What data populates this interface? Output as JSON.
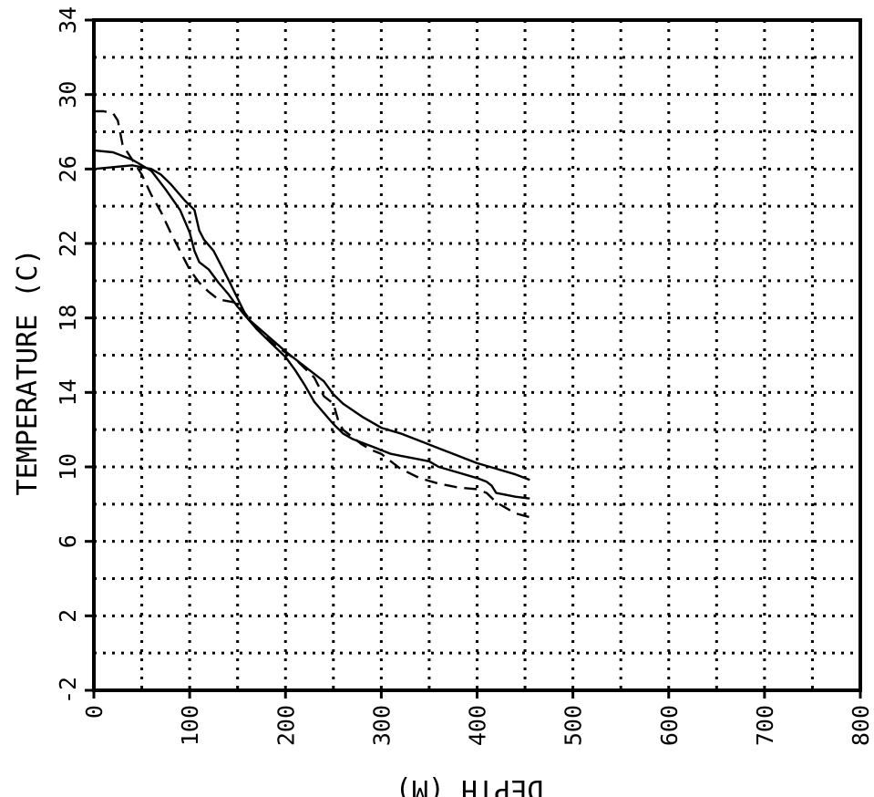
{
  "chart_data": {
    "type": "line",
    "xlabel": "DEPTH (M)",
    "ylabel": "TEMPERATURE (C)",
    "xlim": [
      0,
      800
    ],
    "ylim": [
      -2,
      34
    ],
    "x_ticks": [
      "0",
      "100",
      "200",
      "300",
      "400",
      "500",
      "600",
      "700",
      "800"
    ],
    "y_ticks": [
      "-2",
      "2",
      "6",
      "10",
      "14",
      "18",
      "22",
      "26",
      "30",
      "34"
    ],
    "x_grid_step": 50,
    "y_grid_step": 2,
    "grid": true,
    "grid_style": "dotted",
    "series": [
      {
        "style": "solid",
        "x": [
          0,
          20,
          40,
          60,
          75,
          90,
          100,
          105,
          110,
          120,
          130,
          140,
          150,
          160,
          170,
          180,
          190,
          200,
          210,
          220,
          230,
          240,
          250,
          260,
          270,
          280,
          290,
          300,
          310,
          320,
          330,
          340,
          350,
          360,
          380,
          400,
          410,
          415,
          420,
          440,
          455
        ],
        "y": [
          27.0,
          26.9,
          26.5,
          25.9,
          24.9,
          23.8,
          22.6,
          21.6,
          21.0,
          20.6,
          19.9,
          19.3,
          18.6,
          18.0,
          17.4,
          16.9,
          16.4,
          15.9,
          15.2,
          14.4,
          13.5,
          12.9,
          12.3,
          11.8,
          11.5,
          11.3,
          11.1,
          10.9,
          10.7,
          10.6,
          10.5,
          10.4,
          10.3,
          10.0,
          9.7,
          9.4,
          9.2,
          9.0,
          8.6,
          8.4,
          8.3
        ]
      },
      {
        "style": "solid",
        "x": [
          0,
          20,
          40,
          60,
          70,
          80,
          95,
          105,
          110,
          115,
          125,
          140,
          160,
          180,
          200,
          220,
          240,
          250,
          260,
          280,
          300,
          320,
          340,
          360,
          380,
          400,
          420,
          440,
          455
        ],
        "y": [
          26.0,
          26.1,
          26.2,
          26.0,
          25.7,
          25.2,
          24.3,
          23.8,
          22.7,
          22.2,
          21.6,
          20.1,
          18.0,
          17.1,
          16.2,
          15.4,
          14.6,
          13.9,
          13.4,
          12.7,
          12.1,
          11.8,
          11.4,
          11.0,
          10.6,
          10.2,
          9.9,
          9.6,
          9.3
        ]
      },
      {
        "style": "dashed",
        "x": [
          0,
          10,
          20,
          25,
          30,
          35,
          40,
          50,
          60,
          70,
          80,
          90,
          100,
          110,
          120,
          130,
          140,
          150,
          170,
          190,
          210,
          230,
          240,
          250,
          255,
          260,
          270,
          280,
          290,
          300,
          310,
          320,
          340,
          360,
          380,
          400,
          410,
          420,
          430,
          440,
          455
        ],
        "y": [
          29.1,
          29.1,
          29.0,
          28.6,
          27.3,
          26.9,
          26.5,
          25.7,
          24.6,
          23.7,
          22.6,
          21.6,
          20.6,
          19.9,
          19.4,
          19.0,
          18.9,
          18.8,
          17.4,
          16.5,
          15.8,
          14.8,
          13.8,
          13.4,
          12.5,
          12.0,
          11.6,
          11.2,
          10.9,
          10.7,
          10.3,
          9.9,
          9.4,
          9.1,
          8.9,
          8.8,
          8.6,
          8.1,
          7.8,
          7.5,
          7.3
        ]
      }
    ]
  }
}
